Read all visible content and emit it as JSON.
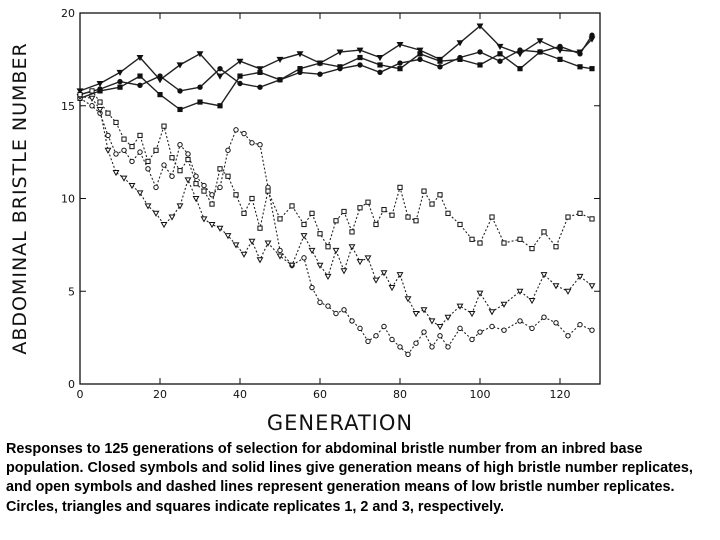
{
  "caption": "Responses to 125 generations of selection for abdominal bristle number from an inbred base population. Closed symbols and solid lines give generation means of high bristle number replicates, and open symbols and dashed lines represent generation means of low bristle number replicates. Circles, triangles and squares indicate replicates 1, 2 and 3, respectively.",
  "chart_data": {
    "type": "line",
    "xlabel": "GENERATION",
    "ylabel": "ABDOMINAL BRISTLE NUMBER",
    "xlim": [
      0,
      130
    ],
    "ylim": [
      0,
      20
    ],
    "xticks": [
      0,
      20,
      40,
      60,
      80,
      100,
      120
    ],
    "yticks": [
      0,
      5,
      10,
      15,
      20
    ],
    "grid": false,
    "series": [
      {
        "group": "high",
        "replicate": 1,
        "marker": "circle",
        "filled": true,
        "dashed": false,
        "x": [
          0,
          5,
          10,
          15,
          20,
          25,
          30,
          35,
          40,
          45,
          50,
          55,
          60,
          65,
          70,
          75,
          80,
          85,
          90,
          95,
          100,
          105,
          110,
          115,
          120,
          125,
          128
        ],
        "y": [
          15.6,
          15.9,
          16.3,
          16.1,
          16.6,
          15.8,
          16.0,
          17.0,
          16.2,
          16.0,
          16.4,
          16.8,
          16.7,
          17.0,
          17.2,
          16.8,
          17.3,
          17.5,
          17.1,
          17.6,
          17.9,
          17.4,
          18.0,
          17.9,
          18.2,
          17.8,
          18.8
        ]
      },
      {
        "group": "high",
        "replicate": 2,
        "marker": "triangle",
        "filled": true,
        "dashed": false,
        "x": [
          0,
          5,
          10,
          15,
          20,
          25,
          30,
          35,
          40,
          45,
          50,
          55,
          60,
          65,
          70,
          75,
          80,
          85,
          90,
          95,
          100,
          105,
          110,
          115,
          120,
          125,
          128
        ],
        "y": [
          15.8,
          16.2,
          16.8,
          17.6,
          16.4,
          17.2,
          17.8,
          16.6,
          17.4,
          17.0,
          17.5,
          17.8,
          17.3,
          17.9,
          18.0,
          17.6,
          18.3,
          18.0,
          17.5,
          18.4,
          19.3,
          18.2,
          17.8,
          18.5,
          18.0,
          17.9,
          18.6
        ]
      },
      {
        "group": "high",
        "replicate": 3,
        "marker": "square",
        "filled": true,
        "dashed": false,
        "x": [
          0,
          5,
          10,
          15,
          20,
          25,
          30,
          35,
          40,
          45,
          50,
          55,
          60,
          65,
          70,
          75,
          80,
          85,
          90,
          95,
          100,
          105,
          110,
          115,
          120,
          125,
          128
        ],
        "y": [
          15.4,
          15.8,
          16.0,
          16.6,
          15.6,
          14.8,
          15.2,
          15.0,
          16.6,
          16.8,
          16.4,
          17.0,
          17.3,
          17.1,
          17.6,
          17.2,
          17.0,
          17.8,
          17.4,
          17.5,
          17.2,
          17.8,
          17.0,
          17.9,
          17.5,
          17.1,
          17.0
        ]
      },
      {
        "group": "low",
        "replicate": 1,
        "marker": "circle",
        "filled": false,
        "dashed": true,
        "x": [
          0,
          3,
          5,
          7,
          9,
          11,
          13,
          15,
          17,
          19,
          21,
          23,
          25,
          27,
          29,
          31,
          33,
          35,
          37,
          39,
          41,
          43,
          45,
          47,
          50,
          53,
          56,
          58,
          60,
          62,
          64,
          66,
          68,
          70,
          72,
          74,
          76,
          78,
          80,
          82,
          84,
          86,
          88,
          90,
          92,
          95,
          98,
          100,
          103,
          106,
          110,
          113,
          116,
          119,
          122,
          125,
          128
        ],
        "y": [
          15.4,
          15.0,
          14.6,
          13.4,
          12.4,
          12.6,
          12.0,
          12.5,
          11.6,
          10.6,
          11.8,
          11.2,
          12.9,
          12.4,
          11.2,
          10.7,
          10.2,
          10.6,
          12.6,
          13.7,
          13.5,
          13.0,
          12.9,
          10.6,
          7.2,
          6.4,
          6.8,
          5.2,
          4.4,
          4.2,
          3.8,
          4.0,
          3.4,
          3.0,
          2.3,
          2.6,
          3.1,
          2.4,
          2.0,
          1.6,
          2.2,
          2.8,
          2.0,
          2.6,
          2.0,
          3.0,
          2.4,
          2.8,
          3.1,
          2.9,
          3.4,
          3.0,
          3.6,
          3.3,
          2.6,
          3.2,
          2.9
        ]
      },
      {
        "group": "low",
        "replicate": 2,
        "marker": "triangle",
        "filled": false,
        "dashed": true,
        "x": [
          0,
          3,
          5,
          7,
          9,
          11,
          13,
          15,
          17,
          19,
          21,
          23,
          25,
          27,
          29,
          31,
          33,
          35,
          37,
          39,
          41,
          43,
          45,
          47,
          50,
          53,
          56,
          58,
          60,
          62,
          64,
          66,
          68,
          70,
          72,
          74,
          76,
          78,
          80,
          82,
          84,
          86,
          88,
          90,
          92,
          95,
          98,
          100,
          103,
          106,
          110,
          113,
          116,
          119,
          122,
          125,
          128
        ],
        "y": [
          15.5,
          15.4,
          14.8,
          12.6,
          11.4,
          11.1,
          10.7,
          10.3,
          9.6,
          9.2,
          8.6,
          9.0,
          9.6,
          11.0,
          10.0,
          8.9,
          8.6,
          8.4,
          8.0,
          7.5,
          7.0,
          7.7,
          6.7,
          7.6,
          6.9,
          6.4,
          8.0,
          7.2,
          6.4,
          5.8,
          7.2,
          6.1,
          7.4,
          6.6,
          6.8,
          5.6,
          6.0,
          5.2,
          5.9,
          4.6,
          3.8,
          4.0,
          3.4,
          3.1,
          3.6,
          4.2,
          3.8,
          4.9,
          3.9,
          4.3,
          5.0,
          4.5,
          5.9,
          5.3,
          5.0,
          5.8,
          5.3
        ]
      },
      {
        "group": "low",
        "replicate": 3,
        "marker": "square",
        "filled": false,
        "dashed": true,
        "x": [
          0,
          3,
          5,
          7,
          9,
          11,
          13,
          15,
          17,
          19,
          21,
          23,
          25,
          27,
          29,
          31,
          33,
          35,
          37,
          39,
          41,
          43,
          45,
          47,
          50,
          53,
          56,
          58,
          60,
          62,
          64,
          66,
          68,
          70,
          72,
          74,
          76,
          78,
          80,
          82,
          84,
          86,
          88,
          90,
          92,
          95,
          98,
          100,
          103,
          106,
          110,
          113,
          116,
          119,
          122,
          125,
          128
        ],
        "y": [
          15.6,
          15.8,
          15.2,
          14.6,
          14.1,
          13.2,
          12.8,
          13.4,
          12.0,
          12.6,
          13.9,
          12.2,
          11.5,
          12.1,
          10.8,
          10.4,
          9.7,
          11.6,
          11.2,
          10.2,
          9.2,
          10.0,
          8.4,
          10.4,
          8.9,
          9.6,
          8.6,
          9.2,
          8.1,
          7.4,
          8.8,
          9.3,
          8.2,
          9.5,
          9.8,
          8.6,
          9.4,
          9.1,
          10.6,
          9.0,
          8.8,
          10.4,
          9.7,
          10.2,
          9.2,
          8.6,
          7.8,
          7.6,
          9.0,
          7.6,
          7.8,
          7.3,
          8.2,
          7.4,
          9.0,
          9.2,
          8.9
        ]
      }
    ]
  }
}
